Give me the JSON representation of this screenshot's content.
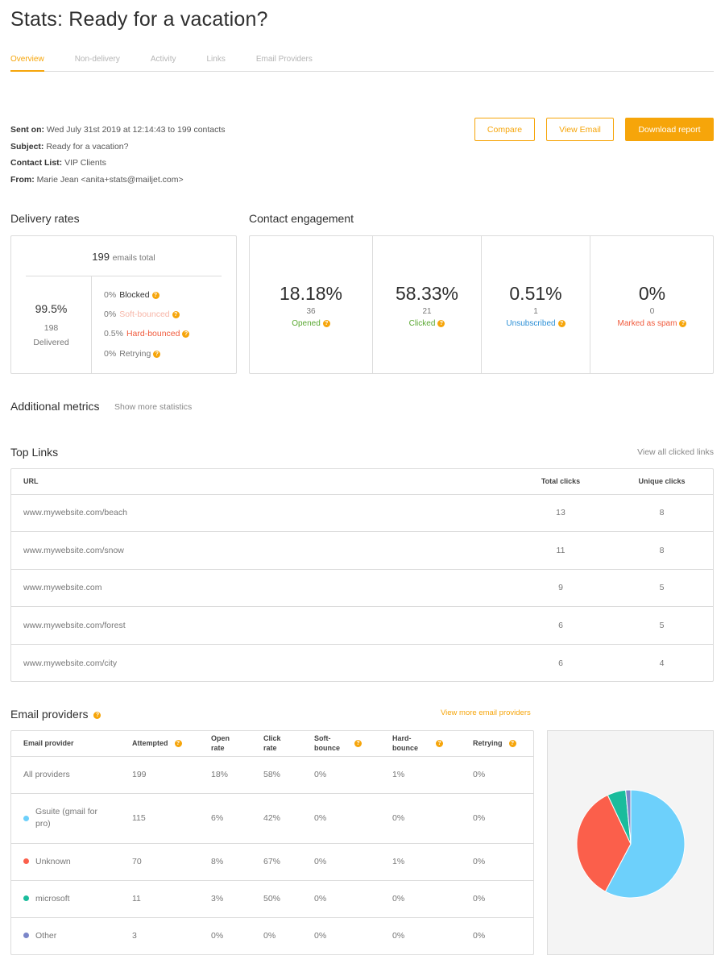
{
  "page": {
    "title": "Stats: Ready for a vacation?"
  },
  "tabs": [
    {
      "label": "Overview",
      "active": true
    },
    {
      "label": "Non-delivery"
    },
    {
      "label": "Activity"
    },
    {
      "label": "Links"
    },
    {
      "label": "Email Providers"
    }
  ],
  "meta": {
    "sent_on_label": "Sent on:",
    "sent_on": "Wed July 31st 2019 at 12:14:43 to 199 contacts",
    "subject_label": "Subject:",
    "subject": "Ready for a vacation?",
    "contact_list_label": "Contact List:",
    "contact_list": "VIP Clients",
    "from_label": "From:",
    "from": "Marie Jean <anita+stats@mailjet.com>"
  },
  "actions": {
    "compare": "Compare",
    "view_email": "View Email",
    "download": "Download report"
  },
  "delivery": {
    "title": "Delivery rates",
    "total_value": "199",
    "total_label": "emails total",
    "delivered_pct": "99.5%",
    "delivered_num": "198",
    "delivered_label": "Delivered",
    "rows": [
      {
        "pct": "0%",
        "label": "Blocked",
        "color": "#333333"
      },
      {
        "pct": "0%",
        "label": "Soft-bounced",
        "color": "#f7b6a8"
      },
      {
        "pct": "0.5%",
        "label": "Hard-bounced",
        "color": "#f05a3c"
      },
      {
        "pct": "0%",
        "label": "Retrying",
        "color": "#777777"
      }
    ]
  },
  "engagement": {
    "title": "Contact engagement",
    "items": [
      {
        "pct": "18.18%",
        "num": "36",
        "label": "Opened",
        "color": "#5aa832"
      },
      {
        "pct": "58.33%",
        "num": "21",
        "label": "Clicked",
        "color": "#5aa832"
      },
      {
        "pct": "0.51%",
        "num": "1",
        "label": "Unsubscribed",
        "color": "#2b8fd6"
      },
      {
        "pct": "0%",
        "num": "0",
        "label": "Marked as spam",
        "color": "#f05a3c"
      }
    ]
  },
  "additional": {
    "title": "Additional metrics",
    "link": "Show more statistics"
  },
  "top_links": {
    "title": "Top Links",
    "view_all": "View all clicked links",
    "columns": [
      "URL",
      "Total clicks",
      "Unique clicks"
    ],
    "rows": [
      {
        "url": "www.mywebsite.com/beach",
        "total": "13",
        "unique": "8"
      },
      {
        "url": "www.mywebsite.com/snow",
        "total": "11",
        "unique": "8"
      },
      {
        "url": "www.mywebsite.com",
        "total": "9",
        "unique": "5"
      },
      {
        "url": "www.mywebsite.com/forest",
        "total": "6",
        "unique": "5"
      },
      {
        "url": "www.mywebsite.com/city",
        "total": "6",
        "unique": "4"
      }
    ]
  },
  "providers": {
    "title": "Email providers",
    "view_more": "View more email providers",
    "columns": {
      "provider": "Email provider",
      "attempted": "Attempted",
      "open_a": "Open",
      "open_b": "rate",
      "click_a": "Click",
      "click_b": "rate",
      "soft_a": "Soft-",
      "soft_b": "bounce",
      "hard_a": "Hard-",
      "hard_b": "bounce",
      "retrying": "Retrying"
    },
    "rows": [
      {
        "name": "All providers",
        "color": "",
        "attempted": "199",
        "open": "18%",
        "click": "58%",
        "soft": "0%",
        "hard": "1%",
        "retrying": "0%"
      },
      {
        "name": "Gsuite (gmail for pro)",
        "color": "#6dd0fb",
        "attempted": "115",
        "open": "6%",
        "click": "42%",
        "soft": "0%",
        "hard": "0%",
        "retrying": "0%"
      },
      {
        "name": "Unknown",
        "color": "#fb5f4b",
        "attempted": "70",
        "open": "8%",
        "click": "67%",
        "soft": "0%",
        "hard": "1%",
        "retrying": "0%"
      },
      {
        "name": "microsoft",
        "color": "#1abc9c",
        "attempted": "11",
        "open": "3%",
        "click": "50%",
        "soft": "0%",
        "hard": "0%",
        "retrying": "0%"
      },
      {
        "name": "Other",
        "color": "#7b86c9",
        "attempted": "3",
        "open": "0%",
        "click": "0%",
        "soft": "0%",
        "hard": "0%",
        "retrying": "0%"
      }
    ]
  },
  "chart_data": {
    "type": "pie",
    "categories": [
      "Gsuite (gmail for pro)",
      "Unknown",
      "microsoft",
      "Other"
    ],
    "values": [
      115,
      70,
      11,
      3
    ],
    "colors": [
      "#6dd0fb",
      "#fb5f4b",
      "#1abc9c",
      "#7b86c9"
    ]
  }
}
